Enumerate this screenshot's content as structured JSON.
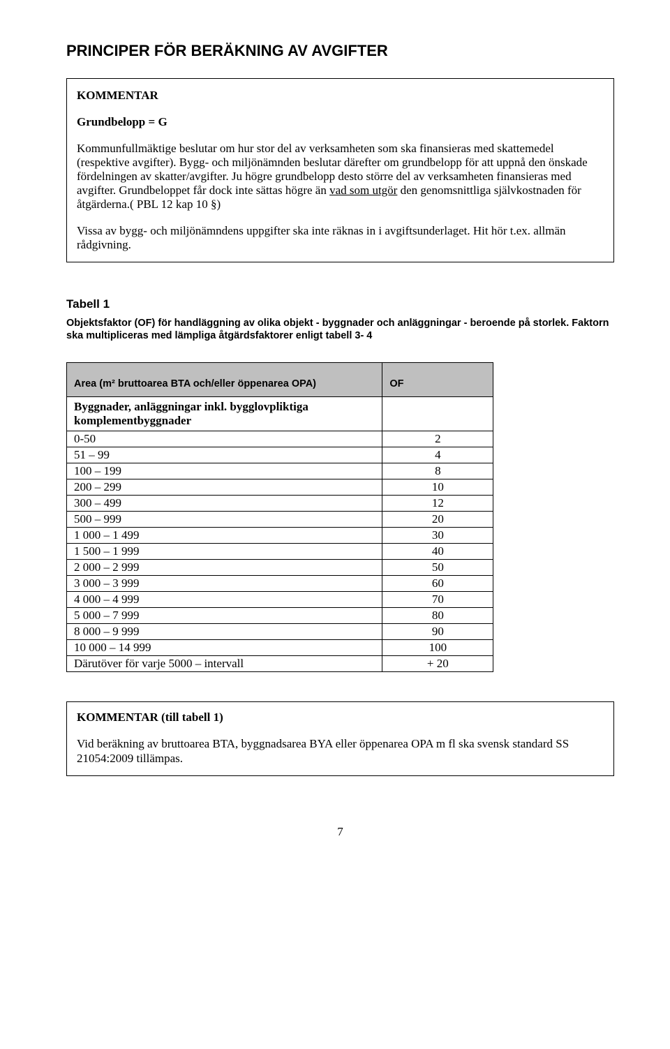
{
  "heading": "PRINCIPER FÖR BERÄKNING AV AVGIFTER",
  "box1": {
    "kommentar": "KOMMENTAR",
    "grundbelopp": "Grundbelopp = G",
    "para1a": "Kommunfullmäktige beslutar om hur stor del av verksamheten som ska finansieras med skattemedel (respektive avgifter). Bygg- och miljönämnden beslutar därefter om grundbelopp för att uppnå den önskade fördelningen av skatter/avgifter. Ju högre grundbelopp desto större del av verksamheten finansieras med avgifter. Grundbeloppet får dock inte sättas högre än ",
    "para1u": "vad som utgör",
    "para1b": " den genomsnittliga självkostnaden för åtgärderna.( PBL 12 kap 10 §)",
    "para2": "Vissa av bygg- och miljönämndens uppgifter ska inte räknas in i avgiftsunderlaget. Hit hör t.ex. allmän rådgivning."
  },
  "tabell1": {
    "title": "Tabell 1",
    "desc": "Objektsfaktor (OF) för handläggning av olika objekt - byggnader och anläggningar - beroende på storlek. Faktorn ska multipliceras med lämpliga åtgärdsfaktorer enligt tabell 3- 4",
    "header_area": "Area (m² bruttoarea BTA och/eller öppenarea OPA)",
    "header_of": "OF",
    "subhead": "Byggnader, anläggningar inkl. bygglovpliktiga komplementbyggnader",
    "rows": [
      {
        "label": "0-50",
        "of": "2"
      },
      {
        "label": "51 – 99",
        "of": "4"
      },
      {
        "label": "100 – 199",
        "of": "8"
      },
      {
        "label": "200 – 299",
        "of": "10"
      },
      {
        "label": "300 – 499",
        "of": "12"
      },
      {
        "label": "500 – 999",
        "of": "20"
      },
      {
        "label": "1 000 – 1 499",
        "of": "30"
      },
      {
        "label": "1 500 – 1 999",
        "of": "40"
      },
      {
        "label": "2 000 – 2 999",
        "of": "50"
      },
      {
        "label": "3 000 – 3 999",
        "of": "60"
      },
      {
        "label": "4 000 – 4 999",
        "of": "70"
      },
      {
        "label": "5 000 – 7 999",
        "of": "80"
      },
      {
        "label": "8 000 – 9 999",
        "of": "90"
      },
      {
        "label": "10 000 – 14 999",
        "of": "100"
      },
      {
        "label": "Därutöver för varje 5000 – intervall",
        "of": "+ 20"
      }
    ]
  },
  "box2": {
    "kommentar": "KOMMENTAR (till tabell 1)",
    "para": "Vid beräkning av bruttoarea BTA, byggnadsarea BYA eller öppenarea OPA m fl ska svensk standard SS 21054:2009 tillämpas."
  },
  "pageno": "7"
}
